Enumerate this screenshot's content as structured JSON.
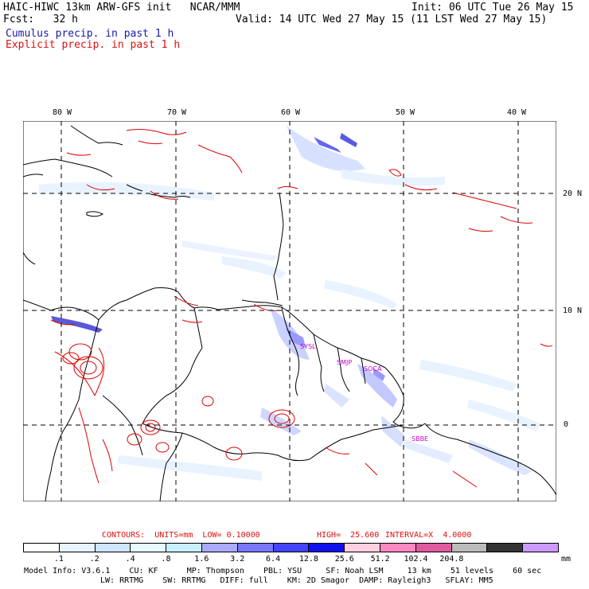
{
  "header": {
    "title": "HAIC-HIWC 13km ARW-GFS init   NCAR/MMM",
    "init": "Init: 06 UTC Tue 26 May 15",
    "fcst": "Fcst:   32 h",
    "valid": "Valid: 14 UTC Wed 27 May 15 (11 LST Wed 27 May 15)",
    "legend_cumulus": "Cumulus precip. in past 1 h",
    "legend_explicit": "Explicit precip. in past 1 h"
  },
  "map": {
    "lon_labels": [
      "80 W",
      "70 W",
      "60 W",
      "50 W",
      "40 W"
    ],
    "lat_labels": [
      "20 N",
      "10 N",
      "0"
    ],
    "stations": [
      "SYSL",
      "SMJP",
      "SOCA",
      "SBBE"
    ]
  },
  "contour_info": {
    "contours": "CONTOURS:  UNITS=mm  LOW= 0.10000",
    "high": "HIGH=  25.600",
    "interval": "INTERVAL=X  4.0000"
  },
  "colorbar": {
    "colors": [
      "#ffffff",
      "#e8f4ff",
      "#cfe6ff",
      "#e6fbff",
      "#c8f0ff",
      "#aaaaff",
      "#7777ff",
      "#4444ff",
      "#1010ee",
      "#ffd0e0",
      "#ff88c0",
      "#e05aa0",
      "#bbbbbb",
      "#333333",
      "#cc99ff"
    ],
    "labels": [
      ".1",
      ".2",
      ".4",
      ".8",
      "1.6",
      "3.2",
      "6.4",
      "12.8",
      "25.6",
      "51.2",
      "102.4",
      "204.8"
    ],
    "unit": "mm"
  },
  "model_info": {
    "line1": "Model Info: V3.6.1    CU: KF      MP: Thompson    PBL: YSU     SF: Noah LSM     13 km    51 levels    60 sec",
    "line2": "LW: RRTMG    SW: RRTMG   DIFF: full    KM: 2D Smagor  DAMP: Rayleigh3   SFLAY: MM5"
  }
}
